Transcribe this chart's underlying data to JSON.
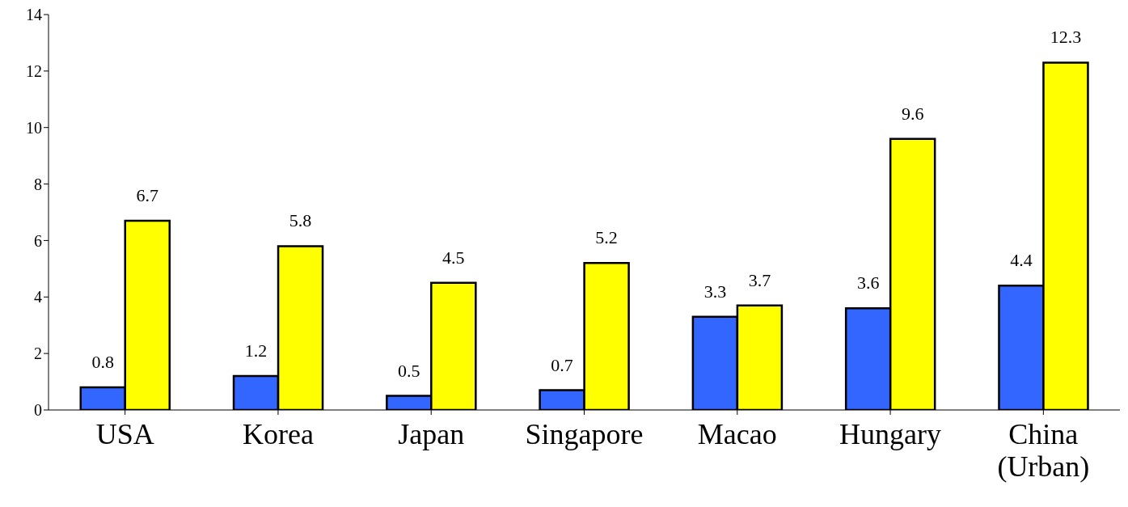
{
  "chart_data": {
    "type": "bar",
    "categories": [
      "USA",
      "Korea",
      "Japan",
      "Singapore",
      "Macao",
      "Hungary",
      "China (Urban)"
    ],
    "series": [
      {
        "color": "#3366ff",
        "values": [
          0.8,
          1.2,
          0.5,
          0.7,
          3.3,
          3.6,
          4.4
        ]
      },
      {
        "color": "#ffff00",
        "values": [
          6.7,
          5.8,
          4.5,
          5.2,
          3.7,
          9.6,
          12.3
        ]
      }
    ],
    "ylim": [
      0,
      14
    ],
    "yticks": [
      0,
      2,
      4,
      6,
      8,
      10,
      12,
      14
    ],
    "data_labels": true
  }
}
